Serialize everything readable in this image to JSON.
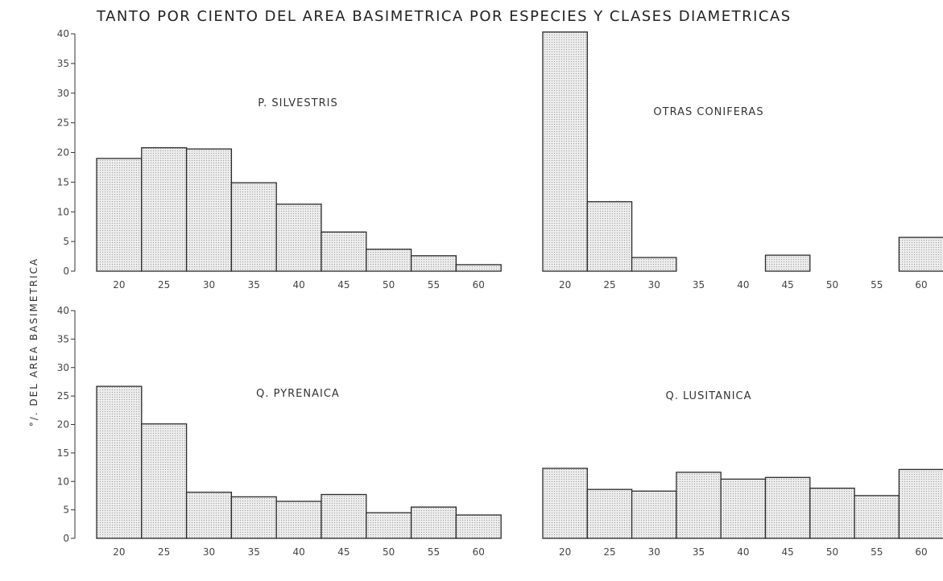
{
  "title": "TANTO POR CIENTO DEL AREA BASIMETRICA POR ESPECIES Y CLASES DIAMETRICAS",
  "ylabel": "°/. DEL AREA BASIMETRICA",
  "colors": {
    "bar_fill": "#e4e4e4",
    "bar_stroke": "#2b2b2b",
    "axis": "#333333"
  },
  "chart_data": [
    {
      "type": "bar",
      "title": "P. SILVESTRIS",
      "categories": [
        "20",
        "25",
        "30",
        "35",
        "40",
        "45",
        "50",
        "55",
        "60"
      ],
      "values": [
        19,
        20.8,
        20.6,
        14.9,
        11.3,
        6.6,
        3.7,
        2.6,
        1.1
      ],
      "ylim": [
        0,
        40
      ],
      "yticks": [
        0,
        5,
        10,
        15,
        20,
        25,
        30,
        35,
        40
      ],
      "grid": false
    },
    {
      "type": "bar",
      "title": "OTRAS CONIFERAS",
      "categories": [
        "20",
        "25",
        "30",
        "35",
        "40",
        "45",
        "50",
        "55",
        "60"
      ],
      "values": [
        40.3,
        11.7,
        2.3,
        0,
        0,
        2.7,
        0,
        0,
        5.7
      ],
      "ylim": [
        0,
        40
      ],
      "grid": false
    },
    {
      "type": "bar",
      "title": "Q. PYRENAICA",
      "categories": [
        "20",
        "25",
        "30",
        "35",
        "40",
        "45",
        "50",
        "55",
        "60"
      ],
      "values": [
        26.7,
        20.1,
        8.1,
        7.3,
        6.5,
        7.7,
        4.5,
        5.5,
        4.1
      ],
      "ylim": [
        0,
        40
      ],
      "yticks": [
        0,
        5,
        10,
        15,
        20,
        25,
        30,
        35,
        40
      ],
      "grid": false
    },
    {
      "type": "bar",
      "title": "Q. LUSITANICA",
      "categories": [
        "20",
        "25",
        "30",
        "35",
        "40",
        "45",
        "50",
        "55",
        "60"
      ],
      "values": [
        12.3,
        8.6,
        8.3,
        11.6,
        10.4,
        10.7,
        8.8,
        7.5,
        12.1
      ],
      "ylim": [
        0,
        40
      ],
      "grid": false
    }
  ]
}
